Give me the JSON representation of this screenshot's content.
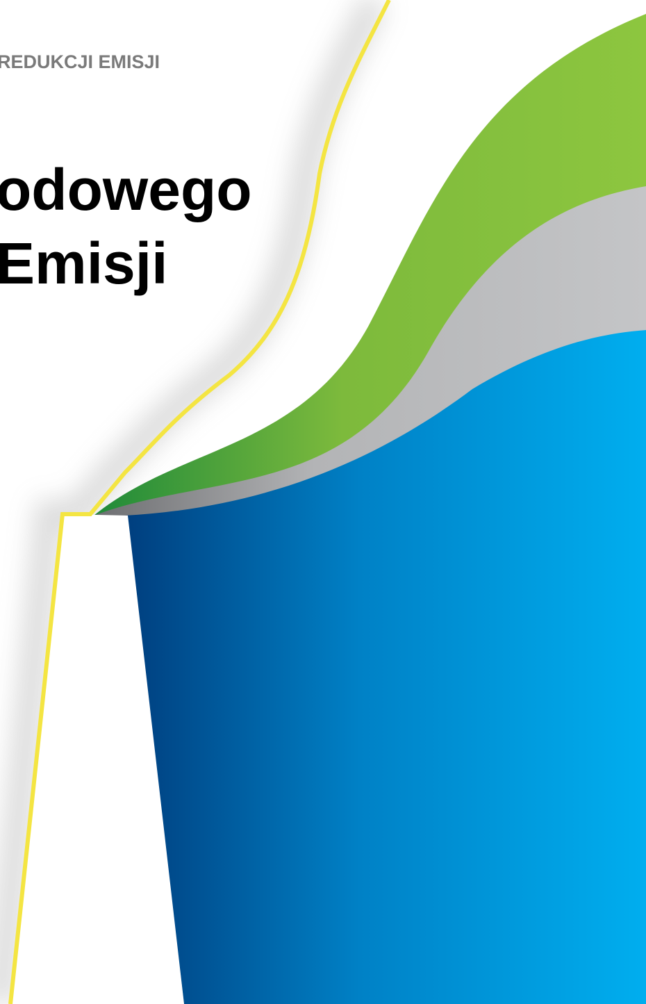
{
  "header": {
    "subtitle": "REDUKCJI EMISJI"
  },
  "title": {
    "lines": [
      "odowego",
      "Emisji"
    ]
  }
}
